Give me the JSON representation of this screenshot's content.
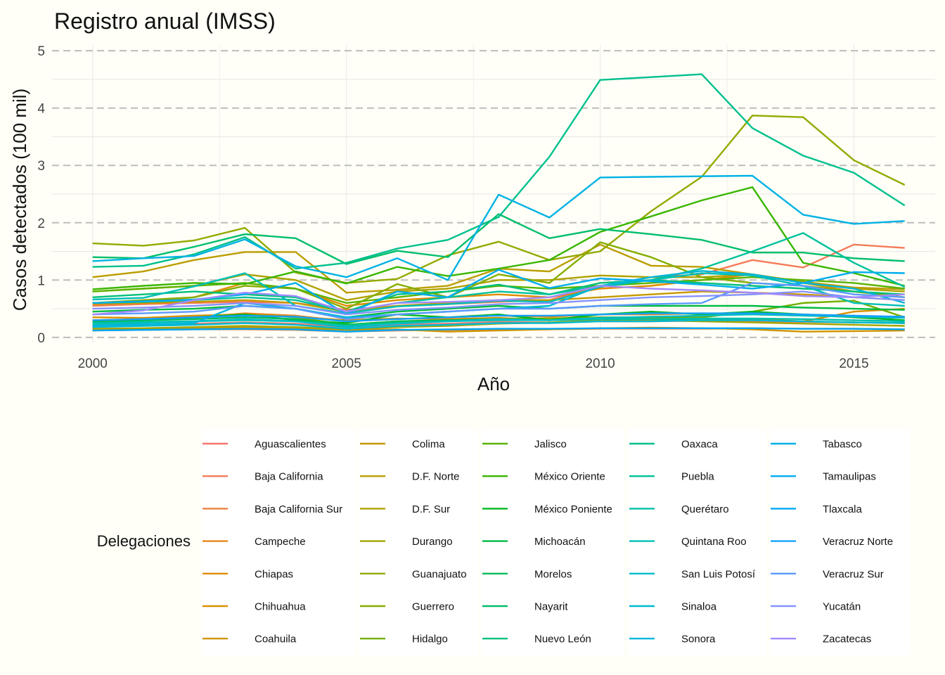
{
  "chart_data": {
    "type": "line",
    "title": "Registro anual (IMSS)",
    "xlabel": "Año",
    "ylabel": "Casos detectados (100 mil)",
    "xlim": [
      1999.2,
      2016.6
    ],
    "ylim": [
      -0.1,
      5.1
    ],
    "x_ticks": [
      2000,
      2005,
      2010,
      2015
    ],
    "y_ticks": [
      0,
      1,
      2,
      3,
      4,
      5
    ],
    "grid": "dashed-major-y",
    "legend_title": "Delegaciones",
    "legend_position": "bottom",
    "x": [
      2000,
      2001,
      2002,
      2003,
      2004,
      2005,
      2006,
      2007,
      2008,
      2009,
      2010,
      2011,
      2012,
      2013,
      2014,
      2015,
      2016
    ],
    "series": [
      {
        "name": "Aguascalientes",
        "color": "#F8766D",
        "values": [
          0.2,
          0.22,
          0.24,
          0.26,
          0.24,
          0.18,
          0.22,
          0.24,
          0.27,
          0.26,
          0.28,
          0.28,
          0.29,
          0.28,
          0.27,
          0.26,
          0.25
        ]
      },
      {
        "name": "Baja California",
        "color": "#F37B59",
        "values": [
          0.55,
          0.58,
          0.6,
          0.62,
          0.6,
          0.48,
          0.55,
          0.58,
          0.62,
          0.65,
          0.9,
          1.05,
          1.1,
          1.35,
          1.22,
          1.62,
          1.56
        ]
      },
      {
        "name": "Baja California Sur",
        "color": "#ED8141",
        "values": [
          0.12,
          0.13,
          0.14,
          0.14,
          0.13,
          0.1,
          0.12,
          0.13,
          0.14,
          0.14,
          0.15,
          0.15,
          0.15,
          0.16,
          0.15,
          0.15,
          0.14
        ]
      },
      {
        "name": "Campeche",
        "color": "#E7861B",
        "values": [
          0.3,
          0.32,
          0.35,
          0.42,
          0.38,
          0.28,
          0.32,
          0.35,
          0.38,
          0.36,
          0.4,
          0.4,
          0.42,
          0.4,
          0.38,
          0.36,
          0.35
        ]
      },
      {
        "name": "Chiapas",
        "color": "#E08B00",
        "values": [
          0.6,
          0.62,
          0.7,
          0.95,
          0.85,
          0.55,
          0.65,
          0.7,
          0.75,
          0.7,
          0.85,
          0.9,
          1.0,
          1.1,
          0.95,
          0.8,
          0.7
        ]
      },
      {
        "name": "Chihuahua",
        "color": "#D89000",
        "values": [
          0.35,
          0.34,
          0.38,
          0.4,
          0.36,
          0.3,
          0.33,
          0.32,
          0.34,
          0.3,
          0.35,
          0.33,
          0.3,
          0.32,
          0.28,
          0.45,
          0.5
        ]
      },
      {
        "name": "Coahuila",
        "color": "#CF9400",
        "values": [
          0.15,
          0.15,
          0.16,
          0.17,
          0.16,
          0.13,
          0.14,
          0.1,
          0.12,
          0.14,
          0.16,
          0.17,
          0.16,
          0.14,
          0.1,
          0.11,
          0.12
        ]
      },
      {
        "name": "Colima",
        "color": "#C59900",
        "values": [
          0.58,
          0.6,
          0.62,
          0.65,
          0.6,
          0.45,
          0.55,
          0.6,
          0.65,
          0.65,
          0.7,
          0.75,
          0.8,
          0.78,
          0.75,
          0.7,
          0.65
        ]
      },
      {
        "name": "D.F. Norte",
        "color": "#BB9D00",
        "values": [
          1.05,
          1.15,
          1.35,
          1.49,
          1.49,
          0.78,
          0.83,
          0.9,
          1.2,
          1.15,
          1.62,
          1.25,
          1.23,
          1.1,
          0.97,
          0.87,
          0.84
        ]
      },
      {
        "name": "D.F. Sur",
        "color": "#AFA100",
        "values": [
          0.8,
          0.85,
          0.9,
          1.1,
          1.0,
          0.65,
          0.8,
          0.85,
          1.0,
          1.0,
          1.08,
          1.05,
          1.05,
          1.1,
          0.97,
          0.85,
          0.8
        ]
      },
      {
        "name": "Durango",
        "color": "#A3A500",
        "values": [
          0.15,
          0.16,
          0.18,
          0.2,
          0.18,
          0.14,
          0.18,
          0.2,
          0.24,
          0.26,
          0.3,
          0.3,
          0.28,
          0.26,
          0.24,
          0.22,
          0.2
        ]
      },
      {
        "name": "Guanajuato",
        "color": "#95A900",
        "values": [
          1.64,
          1.6,
          1.69,
          1.91,
          1.13,
          0.95,
          1.02,
          1.43,
          1.67,
          1.35,
          1.5,
          2.2,
          2.8,
          3.87,
          3.84,
          3.09,
          2.66
        ]
      },
      {
        "name": "Guerrero",
        "color": "#85AD00",
        "values": [
          0.6,
          0.65,
          0.7,
          0.9,
          0.85,
          0.5,
          0.93,
          0.7,
          1.1,
          0.95,
          1.66,
          1.4,
          1.05,
          0.95,
          0.9,
          0.8,
          0.7
        ]
      },
      {
        "name": "Hidalgo",
        "color": "#72B000",
        "values": [
          0.25,
          0.3,
          0.35,
          0.4,
          0.35,
          0.22,
          0.28,
          0.3,
          0.32,
          0.33,
          0.35,
          0.35,
          0.35,
          0.45,
          0.6,
          0.64,
          0.35
        ]
      },
      {
        "name": "Jalisco",
        "color": "#5BB300",
        "values": [
          0.8,
          0.85,
          0.9,
          0.95,
          0.85,
          0.6,
          0.7,
          0.8,
          0.9,
          0.85,
          0.9,
          0.95,
          1.0,
          1.05,
          1.0,
          0.95,
          0.85
        ]
      },
      {
        "name": "México Oriente",
        "color": "#39B600",
        "values": [
          0.84,
          0.9,
          0.95,
          0.93,
          1.15,
          0.94,
          1.23,
          1.07,
          1.2,
          1.35,
          1.84,
          2.11,
          2.39,
          2.62,
          1.3,
          1.12,
          0.9
        ]
      },
      {
        "name": "México Poniente",
        "color": "#00B81F",
        "values": [
          0.2,
          0.3,
          0.35,
          0.4,
          0.3,
          0.25,
          0.4,
          0.35,
          0.4,
          0.3,
          0.4,
          0.45,
          0.4,
          0.45,
          0.4,
          0.35,
          0.3
        ]
      },
      {
        "name": "Michoacán",
        "color": "#00BA42",
        "values": [
          0.45,
          0.48,
          0.5,
          0.55,
          0.5,
          0.35,
          0.45,
          0.5,
          0.55,
          0.5,
          0.55,
          0.55,
          0.55,
          0.55,
          0.52,
          0.5,
          0.48
        ]
      },
      {
        "name": "Morelos",
        "color": "#00BC59",
        "values": [
          0.28,
          0.3,
          0.32,
          0.35,
          0.32,
          0.22,
          0.28,
          0.3,
          0.32,
          0.3,
          0.32,
          0.32,
          0.3,
          0.3,
          0.28,
          0.26,
          0.25
        ]
      },
      {
        "name": "Nayarit",
        "color": "#00BE6C",
        "values": [
          1.4,
          1.38,
          1.58,
          1.8,
          1.73,
          1.28,
          1.51,
          1.4,
          2.15,
          1.73,
          1.89,
          1.8,
          1.7,
          1.48,
          1.48,
          1.38,
          1.33
        ]
      },
      {
        "name": "Nuevo León",
        "color": "#00BF7D",
        "values": [
          0.7,
          0.75,
          0.8,
          0.75,
          0.7,
          0.45,
          0.75,
          0.8,
          0.92,
          0.75,
          0.95,
          1.0,
          0.95,
          0.9,
          0.85,
          0.8,
          0.75
        ]
      },
      {
        "name": "Oaxaca",
        "color": "#00C08D",
        "values": [
          1.23,
          1.25,
          1.45,
          1.75,
          1.2,
          1.3,
          1.55,
          1.7,
          2.1,
          3.15,
          4.49,
          4.54,
          4.59,
          3.65,
          3.17,
          2.87,
          2.3
        ]
      },
      {
        "name": "Puebla",
        "color": "#00C19C",
        "values": [
          0.6,
          0.62,
          0.65,
          0.7,
          0.65,
          0.45,
          0.6,
          0.7,
          0.8,
          0.75,
          0.9,
          1.0,
          1.2,
          1.5,
          1.82,
          1.3,
          0.88
        ]
      },
      {
        "name": "Querétaro",
        "color": "#00C0AA",
        "values": [
          0.25,
          0.27,
          0.28,
          0.3,
          0.28,
          0.2,
          0.25,
          0.28,
          0.3,
          0.3,
          0.32,
          0.32,
          0.33,
          0.33,
          0.32,
          0.3,
          0.28
        ]
      },
      {
        "name": "Quintana Roo",
        "color": "#00BFB7",
        "values": [
          0.66,
          0.69,
          0.89,
          1.12,
          0.55,
          0.42,
          0.54,
          0.58,
          0.64,
          0.62,
          0.88,
          1.0,
          1.12,
          1.08,
          0.9,
          0.6,
          0.55
        ]
      },
      {
        "name": "San Luis Potosí",
        "color": "#00BDC4",
        "values": [
          0.22,
          0.25,
          0.28,
          0.32,
          0.28,
          0.18,
          0.24,
          0.28,
          0.32,
          0.3,
          0.34,
          0.36,
          0.38,
          0.4,
          0.38,
          0.36,
          0.34
        ]
      },
      {
        "name": "Sinaloa",
        "color": "#00BAD0",
        "values": [
          0.18,
          0.2,
          0.22,
          0.25,
          0.22,
          0.15,
          0.2,
          0.22,
          0.25,
          0.25,
          0.28,
          0.28,
          0.3,
          0.3,
          0.28,
          0.26,
          0.25
        ]
      },
      {
        "name": "Sonora",
        "color": "#00B6DB",
        "values": [
          0.2,
          0.22,
          0.25,
          0.6,
          0.5,
          0.35,
          0.4,
          0.45,
          0.5,
          0.55,
          0.9,
          1.05,
          1.16,
          1.1,
          0.95,
          0.85,
          0.6
        ]
      },
      {
        "name": "Tabasco",
        "color": "#00B2E5",
        "values": [
          1.33,
          1.38,
          1.42,
          1.71,
          1.24,
          1.05,
          1.38,
          1.0,
          2.49,
          2.09,
          2.79,
          2.8,
          2.81,
          2.82,
          2.14,
          1.98,
          2.03
        ]
      },
      {
        "name": "Tamaulipas",
        "color": "#00ADEE",
        "values": [
          0.6,
          0.63,
          0.66,
          0.75,
          0.95,
          0.4,
          0.8,
          0.7,
          1.18,
          0.86,
          1.03,
          0.98,
          0.92,
          0.85,
          0.95,
          1.14,
          1.12
        ]
      },
      {
        "name": "Tlaxcala",
        "color": "#00A7F6",
        "values": [
          0.12,
          0.13,
          0.14,
          0.15,
          0.14,
          0.1,
          0.13,
          0.14,
          0.15,
          0.15,
          0.16,
          0.16,
          0.16,
          0.16,
          0.15,
          0.15,
          0.14
        ]
      },
      {
        "name": "Veracruz Norte",
        "color": "#14A0FC",
        "values": [
          0.3,
          0.32,
          0.35,
          0.38,
          0.36,
          0.28,
          0.32,
          0.35,
          0.38,
          0.38,
          0.4,
          0.42,
          0.42,
          0.42,
          0.4,
          0.38,
          0.36
        ]
      },
      {
        "name": "Veracruz Sur",
        "color": "#5C99FF",
        "values": [
          0.4,
          0.42,
          0.45,
          0.55,
          0.5,
          0.32,
          0.4,
          0.45,
          0.5,
          0.5,
          0.55,
          0.58,
          0.6,
          0.95,
          0.9,
          0.75,
          0.7
        ]
      },
      {
        "name": "Yucatán",
        "color": "#8592FF",
        "values": [
          0.5,
          0.52,
          0.55,
          0.6,
          0.55,
          0.4,
          0.48,
          0.52,
          0.58,
          0.6,
          0.65,
          0.7,
          0.72,
          0.75,
          0.8,
          0.7,
          0.65
        ]
      },
      {
        "name": "Zacatecas",
        "color": "#A38AFF",
        "values": [
          0.4,
          0.47,
          0.65,
          0.78,
          0.72,
          0.45,
          0.6,
          0.62,
          0.65,
          0.7,
          0.9,
          0.85,
          0.82,
          0.78,
          0.72,
          0.7,
          0.75
        ]
      },
      {
        "name": "Sonora_",
        "color": "#BB82FF",
        "values": [
          0.25,
          0.27,
          0.3,
          0.33,
          0.3,
          0.22,
          0.27,
          0.3,
          0.33,
          0.33,
          0.36,
          0.38,
          0.4,
          0.4,
          0.38,
          0.36,
          0.35
        ]
      }
    ]
  }
}
